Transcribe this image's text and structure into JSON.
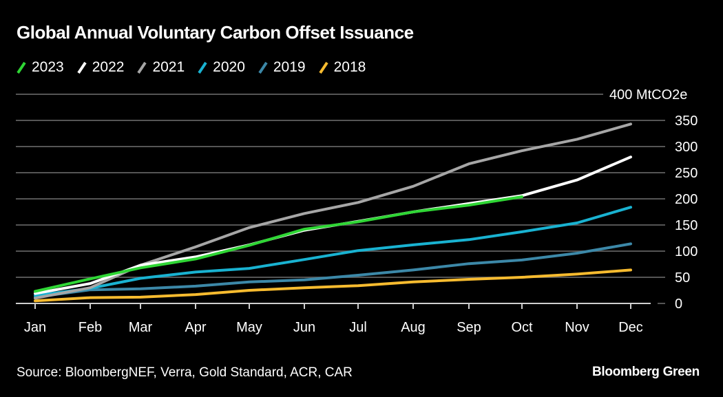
{
  "header": {
    "title": "Global Annual Voluntary Carbon Offset Issuance"
  },
  "footer": {
    "source": "Source: BloombergNEF, Verra, Gold Standard, ACR, CAR",
    "brand": "Bloomberg Green"
  },
  "chart_data": {
    "type": "line",
    "title": "Global Annual Voluntary Carbon Offset Issuance",
    "xlabel": "",
    "ylabel": "MtCO2e",
    "y_unit_label": "400 MtCO2e",
    "ylim": [
      0,
      400
    ],
    "yticks": [
      0,
      50,
      100,
      150,
      200,
      250,
      300,
      350,
      400
    ],
    "ytick_labels": [
      "0",
      "50",
      "100",
      "150",
      "200",
      "250",
      "300",
      "350",
      "400 MtCO2e"
    ],
    "grid": true,
    "legend_position": "top-left",
    "y_axis_position": "right",
    "categories": [
      "Jan",
      "Feb",
      "Mar",
      "Apr",
      "May",
      "Jun",
      "Jul",
      "Aug",
      "Sep",
      "Oct",
      "Nov",
      "Dec"
    ],
    "series": [
      {
        "name": "2023",
        "color": "#2fd635",
        "values": [
          23,
          47,
          68,
          85,
          111,
          142,
          156,
          175,
          188,
          204,
          null,
          null
        ]
      },
      {
        "name": "2022",
        "color": "#ffffff",
        "values": [
          19,
          38,
          73,
          89,
          112,
          140,
          157,
          175,
          191,
          206,
          236,
          280
        ]
      },
      {
        "name": "2021",
        "color": "#a6a6a6",
        "values": [
          10,
          30,
          73,
          108,
          145,
          172,
          193,
          224,
          267,
          292,
          314,
          343
        ]
      },
      {
        "name": "2020",
        "color": "#19b2d1",
        "values": [
          15,
          29,
          48,
          60,
          67,
          84,
          101,
          112,
          122,
          137,
          154,
          184
        ]
      },
      {
        "name": "2019",
        "color": "#3c88a8",
        "values": [
          12,
          26,
          28,
          33,
          41,
          45,
          54,
          64,
          76,
          83,
          96,
          114
        ]
      },
      {
        "name": "2018",
        "color": "#f7bb2f",
        "values": [
          5,
          11,
          12,
          17,
          25,
          30,
          34,
          41,
          46,
          50,
          56,
          64
        ]
      }
    ]
  }
}
